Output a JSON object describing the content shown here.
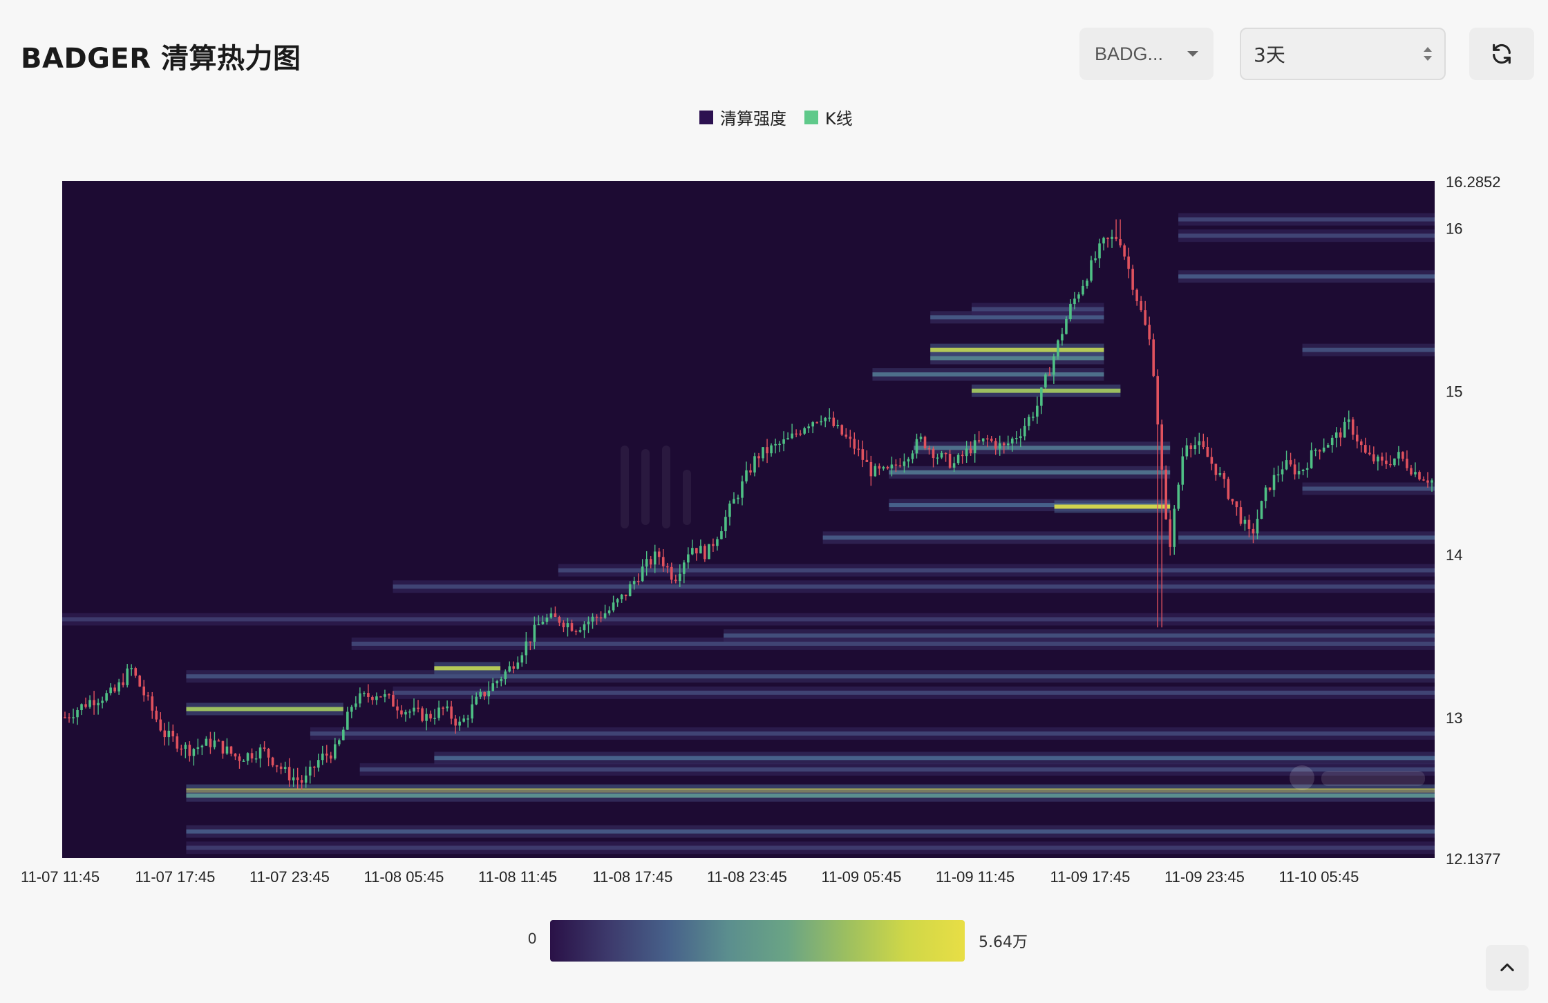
{
  "header": {
    "title": "BADGER 清算热力图",
    "symbol_select_value": "BADG...",
    "range_select_value": "3天"
  },
  "legend": [
    {
      "label": "清算强度",
      "color": "#2c1150"
    },
    {
      "label": "K线",
      "color": "#5fc98a"
    }
  ],
  "colorbar": {
    "min_label": "0",
    "max_label": "5.64万"
  },
  "icons": {
    "refresh": "refresh-icon",
    "scroll_top": "chevron-up-icon",
    "dropdown": "caret-down-icon"
  },
  "colors": {
    "up": "#4fc085",
    "down": "#e0525e",
    "background": "#1d0b33"
  },
  "chart_data": {
    "type": "heatmap",
    "x_ticks": [
      "11-07 11:45",
      "11-07 17:45",
      "11-07 23:45",
      "11-08 05:45",
      "11-08 11:45",
      "11-08 17:45",
      "11-08 23:45",
      "11-09 05:45",
      "11-09 11:45",
      "11-09 17:45",
      "11-09 23:45",
      "11-10 05:45"
    ],
    "y_ticks": [
      "16.2852",
      "16",
      "15",
      "14",
      "13",
      "12.1377"
    ],
    "ylim": [
      12.1377,
      16.2852
    ],
    "candle_close_path": [
      [
        0,
        13.0
      ],
      [
        3,
        13.1
      ],
      [
        6,
        13.15
      ],
      [
        8,
        13.3
      ],
      [
        10,
        13.1
      ],
      [
        12,
        12.9
      ],
      [
        15,
        12.8
      ],
      [
        18,
        12.85
      ],
      [
        21,
        12.75
      ],
      [
        24,
        12.8
      ],
      [
        27,
        12.65
      ],
      [
        29,
        12.6
      ],
      [
        31,
        12.75
      ],
      [
        33,
        12.8
      ],
      [
        35,
        13.1
      ],
      [
        38,
        13.15
      ],
      [
        41,
        13.05
      ],
      [
        44,
        13.0
      ],
      [
        46,
        13.05
      ],
      [
        48,
        12.95
      ],
      [
        50,
        13.1
      ],
      [
        52,
        13.2
      ],
      [
        54,
        13.3
      ],
      [
        56,
        13.45
      ],
      [
        58,
        13.6
      ],
      [
        60,
        13.6
      ],
      [
        62,
        13.55
      ],
      [
        64,
        13.6
      ],
      [
        66,
        13.65
      ],
      [
        68,
        13.75
      ],
      [
        70,
        13.9
      ],
      [
        72,
        14.0
      ],
      [
        74,
        13.85
      ],
      [
        76,
        14.05
      ],
      [
        78,
        14.0
      ],
      [
        80,
        14.2
      ],
      [
        82,
        14.4
      ],
      [
        84,
        14.6
      ],
      [
        86,
        14.65
      ],
      [
        88,
        14.7
      ],
      [
        90,
        14.8
      ],
      [
        92,
        14.85
      ],
      [
        94,
        14.75
      ],
      [
        96,
        14.65
      ],
      [
        98,
        14.5
      ],
      [
        100,
        14.5
      ],
      [
        102,
        14.6
      ],
      [
        104,
        14.7
      ],
      [
        106,
        14.6
      ],
      [
        108,
        14.55
      ],
      [
        110,
        14.65
      ],
      [
        112,
        14.7
      ],
      [
        114,
        14.65
      ],
      [
        116,
        14.75
      ],
      [
        118,
        14.9
      ],
      [
        120,
        15.2
      ],
      [
        122,
        15.5
      ],
      [
        124,
        15.7
      ],
      [
        126,
        15.9
      ],
      [
        128,
        15.95
      ],
      [
        130,
        15.6
      ],
      [
        132,
        15.25
      ],
      [
        134,
        14.0
      ],
      [
        136,
        14.7
      ],
      [
        138,
        14.65
      ],
      [
        140,
        14.5
      ],
      [
        142,
        14.3
      ],
      [
        144,
        14.1
      ],
      [
        146,
        14.4
      ],
      [
        148,
        14.55
      ],
      [
        150,
        14.5
      ],
      [
        152,
        14.65
      ],
      [
        154,
        14.7
      ],
      [
        156,
        14.8
      ],
      [
        158,
        14.6
      ],
      [
        160,
        14.55
      ],
      [
        162,
        14.6
      ],
      [
        164,
        14.5
      ],
      [
        166,
        14.45
      ]
    ],
    "wick_extremes": [
      {
        "x": 128,
        "high": 16.05
      },
      {
        "x": 133,
        "low": 13.55
      }
    ],
    "heat_bands": [
      {
        "price": 12.55,
        "x_start": 15,
        "intensity": 0.95
      },
      {
        "price": 12.52,
        "x_start": 15,
        "intensity": 0.6
      },
      {
        "price": 12.75,
        "x_start": 45,
        "intensity": 0.45
      },
      {
        "price": 12.68,
        "x_start": 36,
        "intensity": 0.3
      },
      {
        "price": 12.9,
        "x_start": 30,
        "intensity": 0.3
      },
      {
        "price": 12.3,
        "x_start": 15,
        "intensity": 0.4
      },
      {
        "price": 12.2,
        "x_start": 15,
        "intensity": 0.25
      },
      {
        "price": 13.05,
        "x_start": 15,
        "intensity": 0.85,
        "x_end": 34
      },
      {
        "price": 13.15,
        "x_start": 40,
        "intensity": 0.3
      },
      {
        "price": 13.25,
        "x_start": 15,
        "intensity": 0.35
      },
      {
        "price": 13.3,
        "x_start": 45,
        "intensity": 0.9,
        "x_end": 53
      },
      {
        "price": 13.5,
        "x_start": 80,
        "intensity": 0.35
      },
      {
        "price": 13.45,
        "x_start": 35,
        "intensity": 0.3
      },
      {
        "price": 13.6,
        "x_start": 0,
        "intensity": 0.25
      },
      {
        "price": 13.8,
        "x_start": 40,
        "intensity": 0.3
      },
      {
        "price": 13.9,
        "x_start": 60,
        "intensity": 0.3
      },
      {
        "price": 14.1,
        "x_start": 92,
        "intensity": 0.4,
        "x_end": 134
      },
      {
        "price": 14.3,
        "x_start": 100,
        "intensity": 0.45,
        "x_end": 134
      },
      {
        "price": 14.29,
        "x_start": 120,
        "intensity": 0.95,
        "x_end": 134
      },
      {
        "price": 14.5,
        "x_start": 100,
        "intensity": 0.5,
        "x_end": 134
      },
      {
        "price": 14.65,
        "x_start": 103,
        "intensity": 0.5,
        "x_end": 134
      },
      {
        "price": 15.0,
        "x_start": 110,
        "intensity": 0.85,
        "x_end": 128
      },
      {
        "price": 15.1,
        "x_start": 98,
        "intensity": 0.5,
        "x_end": 126
      },
      {
        "price": 15.2,
        "x_start": 105,
        "intensity": 0.55,
        "x_end": 126
      },
      {
        "price": 15.25,
        "x_start": 105,
        "intensity": 0.9,
        "x_end": 126
      },
      {
        "price": 15.45,
        "x_start": 105,
        "intensity": 0.4,
        "x_end": 126
      },
      {
        "price": 15.5,
        "x_start": 110,
        "intensity": 0.3,
        "x_end": 126
      },
      {
        "price": 15.7,
        "x_start": 135,
        "intensity": 0.4
      },
      {
        "price": 15.95,
        "x_start": 135,
        "intensity": 0.3
      },
      {
        "price": 16.05,
        "x_start": 135,
        "intensity": 0.3
      },
      {
        "price": 15.25,
        "x_start": 150,
        "intensity": 0.35
      },
      {
        "price": 14.4,
        "x_start": 150,
        "intensity": 0.35
      },
      {
        "price": 14.1,
        "x_start": 135,
        "intensity": 0.4
      }
    ]
  }
}
